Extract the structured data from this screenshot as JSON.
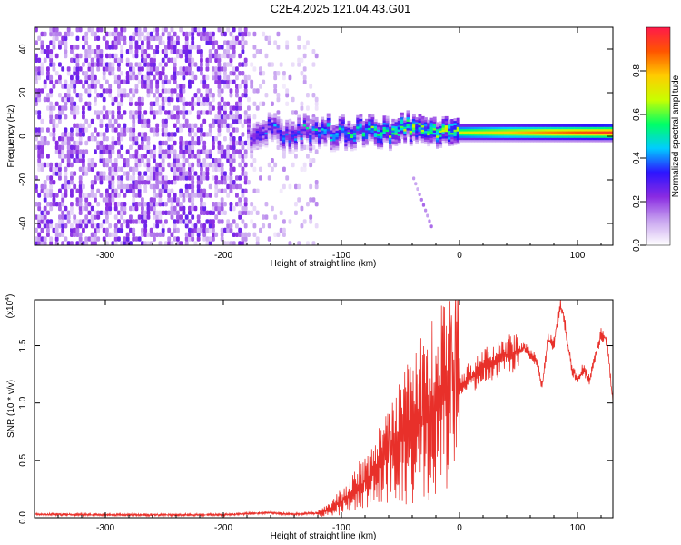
{
  "figure_title": "C2E4.2025.121.04.43.G01",
  "chart_data": [
    {
      "type": "heatmap",
      "title": "",
      "xlabel": "Height of straight line (km)",
      "ylabel": "Frequency (Hz)",
      "xlim": [
        -360,
        130
      ],
      "ylim": [
        -50,
        50
      ],
      "xticks": [
        -300,
        -200,
        -100,
        0,
        100
      ],
      "yticks": [
        -40,
        -20,
        0,
        20,
        40
      ],
      "xtick_labels": [
        "-300",
        "-200",
        "-100",
        "0",
        "100"
      ],
      "ytick_labels": [
        "-40",
        "-20",
        "0",
        "20",
        "40"
      ],
      "colorbar": {
        "label": "Normalized spectral amplitude",
        "range": [
          0,
          1
        ],
        "ticks": [
          0.0,
          0.2,
          0.4,
          0.6,
          0.8
        ],
        "tick_labels": [
          "0.0",
          "0.2",
          "0.4",
          "0.6",
          "0.8"
        ],
        "colors": [
          "#ffffff",
          "#c9a6f0",
          "#8a2be2",
          "#2d14ff",
          "#00ccff",
          "#00ff66",
          "#c8ff00",
          "#ffcc00",
          "#ff5500",
          "#ff1a4a"
        ]
      },
      "features": [
        {
          "name": "broadband noise",
          "x_range": [
            -360,
            -180
          ],
          "freq_range": [
            -50,
            50
          ],
          "amplitude": 0.15
        },
        {
          "name": "sparse noise",
          "x_range": [
            -180,
            -120
          ],
          "freq_range": [
            -50,
            50
          ],
          "amplitude": 0.08
        },
        {
          "name": "signal band",
          "x_range": [
            -180,
            130
          ],
          "center_freq": 1.5,
          "amplitude_start": 0.35,
          "amplitude_end": 0.95
        },
        {
          "name": "tail",
          "x": [
            -40,
            -25
          ],
          "freq": [
            -20,
            -42
          ],
          "amplitude": 0.12
        }
      ]
    },
    {
      "type": "line",
      "title": "",
      "xlabel": "Height of straight line (km)",
      "ylabel": "SNR (10 * v/v)",
      "yscale_label": "(x10",
      "yscale_exponent": "4",
      "xlim": [
        -360,
        130
      ],
      "ylim": [
        0,
        19000
      ],
      "xticks": [
        -300,
        -200,
        -100,
        0,
        100
      ],
      "yticks": [
        0,
        5000,
        10000,
        15000
      ],
      "xtick_labels": [
        "-300",
        "-200",
        "-100",
        "0",
        "100"
      ],
      "ytick_labels": [
        "0.0",
        "0.5",
        "1.0",
        "1.5"
      ],
      "color": "#e8302a",
      "series": [
        {
          "name": "SNR",
          "x": [
            -360,
            -300,
            -250,
            -200,
            -160,
            -150,
            -140,
            -120,
            -110,
            -100,
            -90,
            -80,
            -70,
            -60,
            -50,
            -40,
            -30,
            -20,
            -10,
            0,
            10,
            20,
            30,
            40,
            50,
            55,
            60,
            65,
            70,
            75,
            80,
            85,
            88,
            92,
            95,
            100,
            105,
            110,
            115,
            120,
            125,
            130
          ],
          "y": [
            300,
            250,
            250,
            250,
            450,
            350,
            300,
            400,
            700,
            1400,
            2200,
            3200,
            4200,
            5600,
            6800,
            7800,
            9000,
            10000,
            10800,
            11500,
            12300,
            13200,
            13600,
            14200,
            14500,
            14800,
            14200,
            13800,
            11500,
            15500,
            15200,
            18500,
            17800,
            15000,
            13000,
            12000,
            13000,
            12000,
            14000,
            16000,
            15500,
            10000
          ]
        }
      ]
    }
  ]
}
